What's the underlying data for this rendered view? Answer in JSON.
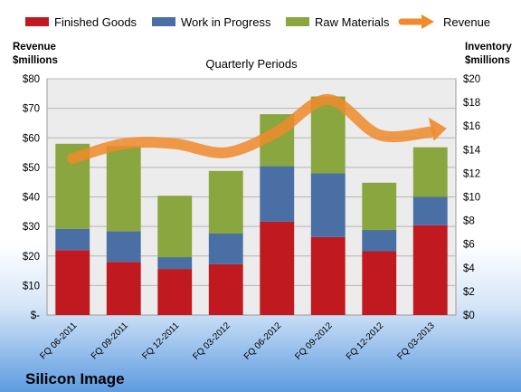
{
  "chart_data": {
    "type": "bar",
    "stacked": true,
    "subtitle": "Quarterly Periods",
    "company": "Silicon Image",
    "categories": [
      "FQ 06-2011",
      "FQ 09-2011",
      "FQ 12-2011",
      "FQ 03-2012",
      "FQ 06-2012",
      "FQ 09-2012",
      "FQ 12-2012",
      "FQ 03-2013"
    ],
    "left_axis": {
      "title_line1": "Revenue",
      "title_line2": "$millions",
      "ylim": [
        0,
        80
      ],
      "ticks": [
        0,
        10,
        20,
        30,
        40,
        50,
        60,
        70,
        80
      ],
      "tick_labels": [
        "$-",
        "$10",
        "$20",
        "$30",
        "$40",
        "$50",
        "$60",
        "$70",
        "$80"
      ]
    },
    "right_axis": {
      "title_line1": "Inventory",
      "title_line2": "$millions",
      "ylim": [
        0,
        20
      ],
      "ticks": [
        0,
        2,
        4,
        6,
        8,
        10,
        12,
        14,
        16,
        18,
        20
      ],
      "tick_labels": [
        "$0",
        "$2",
        "$4",
        "$6",
        "$8",
        "$10",
        "$12",
        "$14",
        "$16",
        "$18",
        "$20"
      ]
    },
    "series": [
      {
        "name": "Finished Goods",
        "axis": "right",
        "color": "#c0191f",
        "values": [
          5.5,
          4.5,
          3.9,
          4.3,
          7.9,
          6.6,
          5.4,
          7.6
        ]
      },
      {
        "name": "Work in Progress",
        "axis": "right",
        "color": "#4a6fa5",
        "values": [
          1.8,
          2.6,
          1.0,
          2.6,
          4.7,
          5.4,
          1.8,
          2.4
        ]
      },
      {
        "name": "Raw Materials",
        "axis": "right",
        "color": "#8aa63e",
        "values": [
          7.2,
          7.2,
          5.2,
          5.3,
          4.4,
          6.5,
          4.0,
          4.2
        ]
      },
      {
        "name": "Revenue",
        "axis": "left",
        "type": "line",
        "color": "#f08a2c",
        "values": [
          53,
          58,
          58,
          55,
          62,
          73,
          61,
          62
        ]
      }
    ],
    "grid": true,
    "legend": "top"
  }
}
